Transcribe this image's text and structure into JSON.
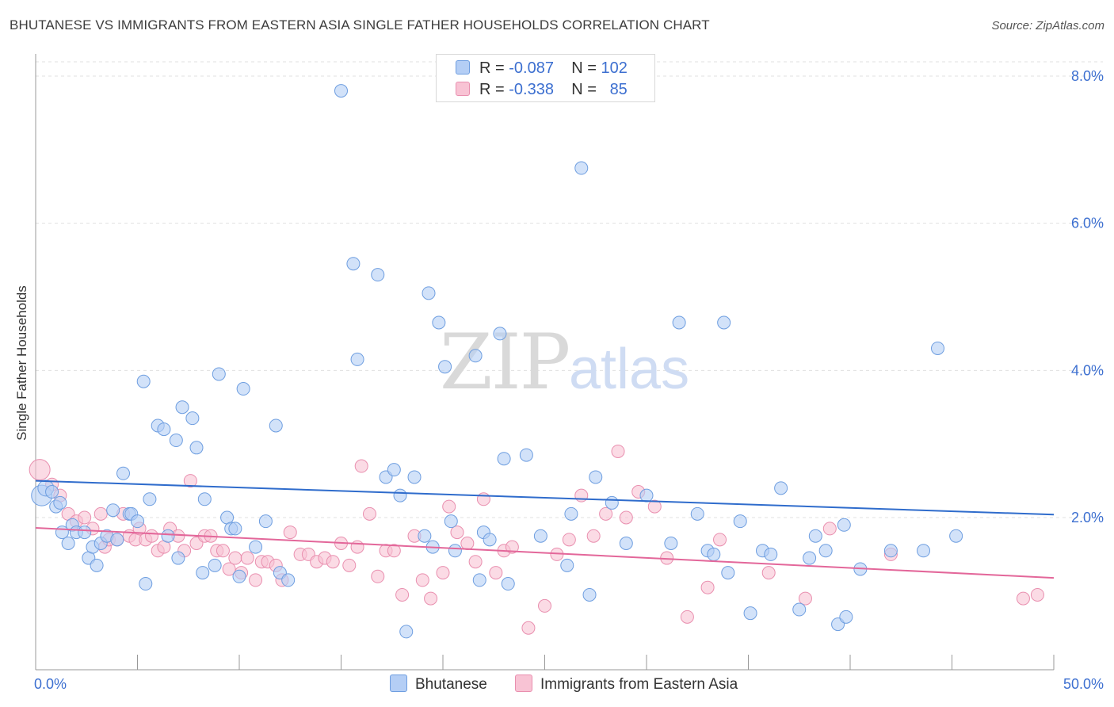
{
  "title": "BHUTANESE VS IMMIGRANTS FROM EASTERN ASIA SINGLE FATHER HOUSEHOLDS CORRELATION CHART",
  "source": "Source: ZipAtlas.com",
  "legend": {
    "r_label": "R =",
    "n_label": "N =",
    "series1": {
      "r": "-0.087",
      "n": "102"
    },
    "series2": {
      "r": "-0.338",
      "n": "85"
    }
  },
  "watermark": {
    "zip": "ZIP",
    "atlas": "atlas"
  },
  "colors": {
    "blue_fill": "#b4cef5",
    "blue_stroke": "#6e9ee0",
    "blue_line": "#2f6ccc",
    "pink_fill": "#f8c3d4",
    "pink_stroke": "#e98faf",
    "pink_line": "#e3679a",
    "axis_text": "#3c6fd0",
    "grid": "#e0e0e0"
  },
  "chart_data": {
    "type": "scatter",
    "title": "BHUTANESE VS IMMIGRANTS FROM EASTERN ASIA SINGLE FATHER HOUSEHOLDS CORRELATION CHART",
    "xlabel": "",
    "ylabel": "Single Father Households",
    "xlim": [
      0,
      50
    ],
    "ylim": [
      0,
      8.3
    ],
    "x_tick_labels": [
      "0.0%",
      "50.0%"
    ],
    "y_ticks": [
      2.0,
      4.0,
      6.0,
      8.0
    ],
    "y_tick_labels": [
      "2.0%",
      "4.0%",
      "6.0%",
      "8.0%"
    ],
    "grid": "horizontal dashed",
    "legend_position": "top-center",
    "series": [
      {
        "name": "Bhutanese",
        "r": -0.087,
        "n": 102,
        "trend": {
          "x": [
            0,
            50
          ],
          "y": [
            2.5,
            2.04
          ]
        },
        "points": [
          [
            0.3,
            2.3
          ],
          [
            0.5,
            2.4
          ],
          [
            0.8,
            2.35
          ],
          [
            1.0,
            2.15
          ],
          [
            1.2,
            2.2
          ],
          [
            1.3,
            1.8
          ],
          [
            1.6,
            1.65
          ],
          [
            1.8,
            1.9
          ],
          [
            2.0,
            1.8
          ],
          [
            2.4,
            1.8
          ],
          [
            2.6,
            1.45
          ],
          [
            2.8,
            1.6
          ],
          [
            3.0,
            1.35
          ],
          [
            3.2,
            1.65
          ],
          [
            3.5,
            1.75
          ],
          [
            3.8,
            2.1
          ],
          [
            4.0,
            1.7
          ],
          [
            4.3,
            2.6
          ],
          [
            4.6,
            2.05
          ],
          [
            4.7,
            2.05
          ],
          [
            5.0,
            1.95
          ],
          [
            5.3,
            3.85
          ],
          [
            5.4,
            1.1
          ],
          [
            5.6,
            2.25
          ],
          [
            6.0,
            3.25
          ],
          [
            6.3,
            3.2
          ],
          [
            6.5,
            1.75
          ],
          [
            6.9,
            3.05
          ],
          [
            7.0,
            1.45
          ],
          [
            7.2,
            3.5
          ],
          [
            7.7,
            3.35
          ],
          [
            7.9,
            2.95
          ],
          [
            8.2,
            1.25
          ],
          [
            8.3,
            2.25
          ],
          [
            8.8,
            1.35
          ],
          [
            9.0,
            3.95
          ],
          [
            9.4,
            2.0
          ],
          [
            9.6,
            1.85
          ],
          [
            9.8,
            1.85
          ],
          [
            10.0,
            1.2
          ],
          [
            10.8,
            1.6
          ],
          [
            10.2,
            3.75
          ],
          [
            11.3,
            1.95
          ],
          [
            11.8,
            3.25
          ],
          [
            12.0,
            1.25
          ],
          [
            12.4,
            1.15
          ],
          [
            15.0,
            7.8
          ],
          [
            15.6,
            5.45
          ],
          [
            15.8,
            4.15
          ],
          [
            16.8,
            5.3
          ],
          [
            17.2,
            2.55
          ],
          [
            17.6,
            2.65
          ],
          [
            17.9,
            2.3
          ],
          [
            18.2,
            0.45
          ],
          [
            18.6,
            2.55
          ],
          [
            19.1,
            1.75
          ],
          [
            19.3,
            5.05
          ],
          [
            19.8,
            4.65
          ],
          [
            20.1,
            4.05
          ],
          [
            20.4,
            1.95
          ],
          [
            20.6,
            1.55
          ],
          [
            21.6,
            4.2
          ],
          [
            21.8,
            1.15
          ],
          [
            22.0,
            1.8
          ],
          [
            22.3,
            1.7
          ],
          [
            22.8,
            4.5
          ],
          [
            23.0,
            2.8
          ],
          [
            23.2,
            1.1
          ],
          [
            24.1,
            2.85
          ],
          [
            24.8,
            1.75
          ],
          [
            26.1,
            1.35
          ],
          [
            26.3,
            2.05
          ],
          [
            26.8,
            6.75
          ],
          [
            27.2,
            0.95
          ],
          [
            27.5,
            2.55
          ],
          [
            28.3,
            2.2
          ],
          [
            29.0,
            1.65
          ],
          [
            30.0,
            2.3
          ],
          [
            31.2,
            1.65
          ],
          [
            31.6,
            4.65
          ],
          [
            32.5,
            2.05
          ],
          [
            33.0,
            1.55
          ],
          [
            33.3,
            1.5
          ],
          [
            34.0,
            1.25
          ],
          [
            34.6,
            1.95
          ],
          [
            35.1,
            0.7
          ],
          [
            35.7,
            1.55
          ],
          [
            36.1,
            1.5
          ],
          [
            36.6,
            2.4
          ],
          [
            37.5,
            0.75
          ],
          [
            38.0,
            1.45
          ],
          [
            38.3,
            1.75
          ],
          [
            38.8,
            1.55
          ],
          [
            39.4,
            0.55
          ],
          [
            39.7,
            1.9
          ],
          [
            39.8,
            0.65
          ],
          [
            40.5,
            1.3
          ],
          [
            42.0,
            1.55
          ],
          [
            43.6,
            1.55
          ],
          [
            44.3,
            4.3
          ],
          [
            45.2,
            1.75
          ],
          [
            33.8,
            4.65
          ],
          [
            19.5,
            1.6
          ]
        ]
      },
      {
        "name": "Immigrants from Eastern Asia",
        "r": -0.338,
        "n": 85,
        "trend": {
          "x": [
            0,
            50
          ],
          "y": [
            1.86,
            1.18
          ]
        },
        "points": [
          [
            0.2,
            2.65
          ],
          [
            0.8,
            2.45
          ],
          [
            1.2,
            2.3
          ],
          [
            1.6,
            2.05
          ],
          [
            2.0,
            1.95
          ],
          [
            2.4,
            2.0
          ],
          [
            2.8,
            1.85
          ],
          [
            3.2,
            2.05
          ],
          [
            3.4,
            1.6
          ],
          [
            3.6,
            1.7
          ],
          [
            4.0,
            1.7
          ],
          [
            4.3,
            2.05
          ],
          [
            4.6,
            1.75
          ],
          [
            4.9,
            1.7
          ],
          [
            5.1,
            1.85
          ],
          [
            5.4,
            1.7
          ],
          [
            5.7,
            1.75
          ],
          [
            6.0,
            1.55
          ],
          [
            6.3,
            1.6
          ],
          [
            6.6,
            1.85
          ],
          [
            7.0,
            1.75
          ],
          [
            7.3,
            1.55
          ],
          [
            7.6,
            2.5
          ],
          [
            7.9,
            1.65
          ],
          [
            8.3,
            1.75
          ],
          [
            8.6,
            1.75
          ],
          [
            8.9,
            1.55
          ],
          [
            9.2,
            1.55
          ],
          [
            9.5,
            1.3
          ],
          [
            9.8,
            1.45
          ],
          [
            10.1,
            1.25
          ],
          [
            10.4,
            1.45
          ],
          [
            10.8,
            1.15
          ],
          [
            11.1,
            1.4
          ],
          [
            11.4,
            1.4
          ],
          [
            11.8,
            1.35
          ],
          [
            12.1,
            1.15
          ],
          [
            12.5,
            1.8
          ],
          [
            13.0,
            1.5
          ],
          [
            13.4,
            1.5
          ],
          [
            13.8,
            1.4
          ],
          [
            14.2,
            1.45
          ],
          [
            14.6,
            1.4
          ],
          [
            15.0,
            1.65
          ],
          [
            15.4,
            1.35
          ],
          [
            15.8,
            1.6
          ],
          [
            16.0,
            2.7
          ],
          [
            16.4,
            2.05
          ],
          [
            16.8,
            1.2
          ],
          [
            17.2,
            1.55
          ],
          [
            17.6,
            1.55
          ],
          [
            18.0,
            0.95
          ],
          [
            18.6,
            1.75
          ],
          [
            19.0,
            1.15
          ],
          [
            19.4,
            0.9
          ],
          [
            20.0,
            1.25
          ],
          [
            20.3,
            2.15
          ],
          [
            20.7,
            1.8
          ],
          [
            21.2,
            1.65
          ],
          [
            21.6,
            1.4
          ],
          [
            22.0,
            2.25
          ],
          [
            22.6,
            1.25
          ],
          [
            23.0,
            1.55
          ],
          [
            23.4,
            1.6
          ],
          [
            24.2,
            0.5
          ],
          [
            25.0,
            0.8
          ],
          [
            25.6,
            1.5
          ],
          [
            26.2,
            1.7
          ],
          [
            26.8,
            2.3
          ],
          [
            27.4,
            1.75
          ],
          [
            28.0,
            2.05
          ],
          [
            28.6,
            2.9
          ],
          [
            29.0,
            2.0
          ],
          [
            29.6,
            2.35
          ],
          [
            30.4,
            2.15
          ],
          [
            31.0,
            1.45
          ],
          [
            32.0,
            0.65
          ],
          [
            33.0,
            1.05
          ],
          [
            33.6,
            1.7
          ],
          [
            36.0,
            1.25
          ],
          [
            37.8,
            0.9
          ],
          [
            39.0,
            1.85
          ],
          [
            42.0,
            1.5
          ],
          [
            48.5,
            0.9
          ],
          [
            49.2,
            0.95
          ]
        ]
      }
    ]
  }
}
